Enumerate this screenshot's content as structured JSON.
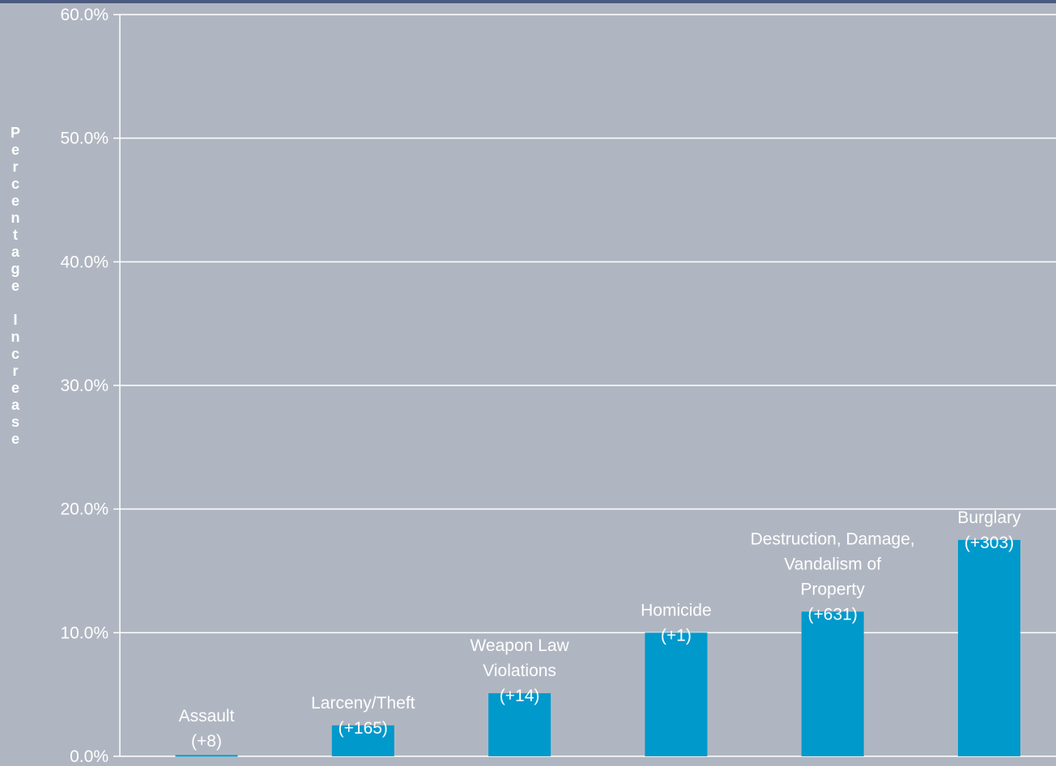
{
  "chart_data": {
    "type": "bar",
    "title": "",
    "xlabel": "",
    "ylabel": "Percentage Increase",
    "ylim": [
      0,
      60
    ],
    "yticks": [
      "0.0%",
      "10.0%",
      "20.0%",
      "30.0%",
      "40.0%",
      "50.0%",
      "60.0%"
    ],
    "grid": true,
    "bar_color": "#0099cc",
    "categories": [
      "Assault",
      "Larceny/Theft",
      "Weapon Law Violations",
      "Homicide",
      "Destruction, Damage, Vandalism of Property",
      "Burglary"
    ],
    "values": [
      0.1,
      2.5,
      5.1,
      10.0,
      11.7,
      17.5
    ],
    "data_labels": [
      [
        "Assault",
        "(+8)"
      ],
      [
        "Larceny/Theft",
        "(+165)"
      ],
      [
        "Weapon Law",
        "Violations",
        "(+14)"
      ],
      [
        "Homicide",
        "(+1)"
      ],
      [
        "Destruction, Damage,",
        "Vandalism of",
        "Property",
        "(+631)"
      ],
      [
        "Burglary",
        "(+303)"
      ]
    ]
  },
  "colors": {
    "background": "#b0b6c1",
    "gridline": "#ffffff",
    "bar": "#0099cc",
    "text": "#ffffff",
    "top_band": "#4a5a7e"
  }
}
